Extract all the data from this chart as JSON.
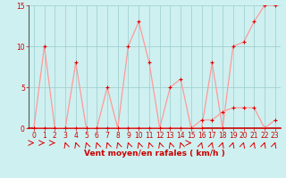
{
  "x": [
    0,
    1,
    2,
    3,
    4,
    5,
    6,
    7,
    8,
    9,
    10,
    11,
    12,
    13,
    14,
    15,
    16,
    17,
    18,
    19,
    20,
    21,
    22,
    23
  ],
  "y_rafales": [
    0,
    10,
    0,
    0,
    8,
    0,
    0,
    5,
    0,
    10,
    13,
    8,
    0,
    5,
    6,
    0,
    0,
    8,
    0,
    10,
    10.5,
    13,
    15,
    15
  ],
  "y_moyen": [
    0,
    0,
    0,
    0,
    0,
    0,
    0,
    0,
    0,
    0,
    0,
    0,
    0,
    0,
    0,
    0,
    1,
    1,
    2,
    2.5,
    2.5,
    2.5,
    0,
    1
  ],
  "xlabel": "Vent moyen/en rafales ( km/h )",
  "ylim": [
    0,
    15
  ],
  "xlim": [
    -0.5,
    23.5
  ],
  "yticks": [
    0,
    5,
    10,
    15
  ],
  "bg_color": "#cff0f0",
  "line_color": "#ff9999",
  "marker_color": "#dd0000",
  "grid_color": "#99cccc",
  "axis_color": "#555555",
  "label_color": "#cc0000",
  "xlabel_fontsize": 6.5,
  "tick_fontsize": 5.5
}
